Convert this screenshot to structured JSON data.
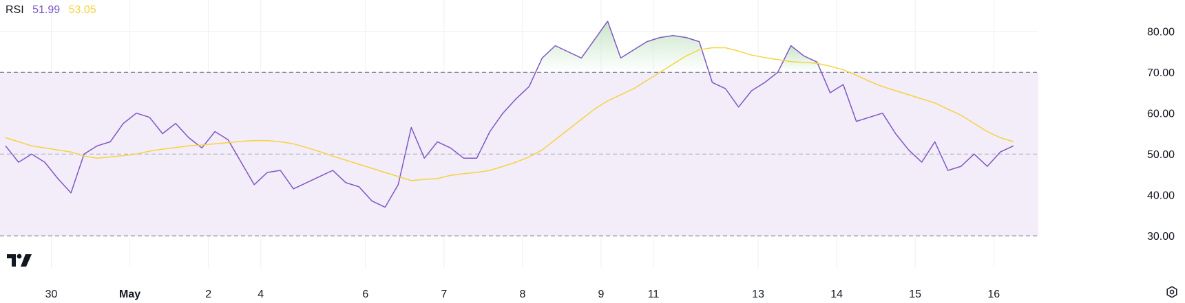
{
  "legend": {
    "name": "RSI",
    "rsi_value": "51.99",
    "ma_value": "53.05"
  },
  "colors": {
    "rsi_line": "#7e57c2",
    "ma_line": "#f5d33f",
    "band_fill": "#f3ecf9",
    "overbought_fill": "#c8e6c9",
    "grid": "#eef0f3",
    "dashed": "#6b6f80",
    "text": "#131722"
  },
  "chart_data": {
    "type": "line",
    "ylim": [
      25.5,
      86
    ],
    "y_ticks": [
      30,
      40,
      50,
      60,
      70,
      80
    ],
    "y_tick_labels": [
      "30.00",
      "40.00",
      "50.00",
      "60.00",
      "70.00",
      "80.00"
    ],
    "bands": {
      "upper": 70,
      "middle": 50,
      "lower": 30
    },
    "grid": true,
    "x_ticks": [
      {
        "label": "30",
        "x": 3.5,
        "bold": false
      },
      {
        "label": "May",
        "x": 9.5,
        "bold": true
      },
      {
        "label": "2",
        "x": 15.5,
        "bold": false
      },
      {
        "label": "4",
        "x": 19.5,
        "bold": false
      },
      {
        "label": "6",
        "x": 27.5,
        "bold": false
      },
      {
        "label": "7",
        "x": 33.5,
        "bold": false
      },
      {
        "label": "8",
        "x": 39.5,
        "bold": false
      },
      {
        "label": "9",
        "x": 45.5,
        "bold": false
      },
      {
        "label": "11",
        "x": 49.5,
        "bold": false
      },
      {
        "label": "13",
        "x": 57.5,
        "bold": false
      },
      {
        "label": "14",
        "x": 63.5,
        "bold": false
      },
      {
        "label": "15",
        "x": 69.5,
        "bold": false
      },
      {
        "label": "16",
        "x": 75.5,
        "bold": false
      }
    ],
    "series": [
      {
        "values": [
          52,
          48,
          50,
          48,
          44,
          40.5,
          50,
          52,
          53,
          57.5,
          60,
          59,
          55,
          57.5,
          54,
          51.5,
          55.5,
          53.5,
          48,
          42.5,
          45.5,
          46,
          41.5,
          43,
          44.5,
          46,
          43,
          42,
          38.5,
          37,
          42.5,
          56.5,
          49,
          53,
          51.5,
          49,
          49,
          55.5,
          60,
          63.5,
          66.5,
          73.5,
          76.5,
          75,
          73.5,
          78,
          82.5,
          73.5,
          75.5,
          77.5,
          78.5,
          79,
          78.5,
          77.5,
          67.5,
          66,
          61.5,
          65.5,
          67.5,
          70,
          76.5,
          74,
          72.5,
          65,
          67,
          58,
          59,
          60,
          55,
          51,
          48,
          53,
          46,
          47,
          50,
          47,
          50.5,
          52
        ]
      },
      {
        "values": [
          54,
          53,
          52,
          51.5,
          51,
          50.5,
          49.5,
          49,
          49.3,
          49.6,
          50,
          50.7,
          51.2,
          51.6,
          52,
          52.2,
          52.5,
          52.8,
          53.1,
          53.3,
          53.3,
          53,
          52.5,
          51.6,
          50.6,
          49.5,
          48.5,
          47.5,
          46.5,
          45.5,
          44.5,
          43.5,
          43.8,
          44,
          44.8,
          45.2,
          45.5,
          46,
          47,
          48,
          49.3,
          51,
          53.5,
          56,
          58.5,
          61,
          63,
          64.5,
          66,
          68,
          70,
          72,
          74,
          75.5,
          76,
          76,
          75.2,
          74.2,
          73.6,
          73.1,
          72.6,
          72.4,
          72.2,
          71.5,
          70.6,
          69.3,
          67.8,
          66.5,
          65.5,
          64.5,
          63.5,
          62.5,
          61,
          59.5,
          57.5,
          55.5,
          54,
          53.05
        ]
      }
    ]
  }
}
